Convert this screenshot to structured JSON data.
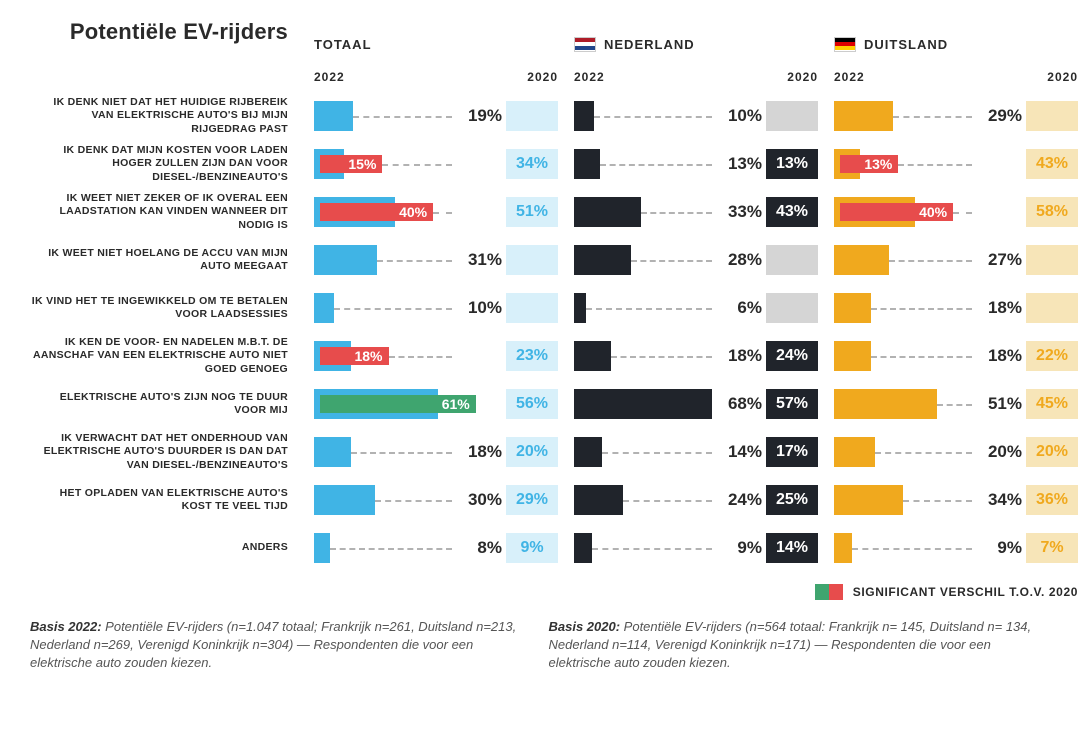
{
  "title": "Potentiële EV-rijders",
  "years": {
    "current": "2022",
    "previous": "2020"
  },
  "colorScheme": {
    "sig_increase": "#3fa56f",
    "sig_decrease": "#e74c4c",
    "dash": "rgba(0,0,0,0.3)",
    "text": "#2a2a2a",
    "white": "#ffffff",
    "background": "#ffffff"
  },
  "layout": {
    "maxBarPct": 70,
    "barHeight": 30,
    "overlayHeight": 18,
    "box2020Width": 52,
    "valueWidth": 48,
    "gapAfterBar": 50,
    "valueFontSize": 17,
    "box2020FontSize": 16,
    "labelFontSize": 10.5,
    "headerFontSize": 13
  },
  "columns": [
    {
      "key": "totaal",
      "label": "TOTAAL",
      "flag": null,
      "barColor": "#40b4e5",
      "box2020Bg": "#d8f0fa",
      "box2020Text": "#40b4e5",
      "emptyBoxBg": "#d8f0fa"
    },
    {
      "key": "nederland",
      "label": "NEDERLAND",
      "flag": [
        "#ae1c28",
        "#ffffff",
        "#21468b"
      ],
      "barColor": "#20242b",
      "box2020Bg": "#20242b",
      "box2020Text": "#ffffff",
      "emptyBoxBg": "#d5d5d5"
    },
    {
      "key": "duitsland",
      "label": "DUITSLAND",
      "flag": [
        "#000000",
        "#dd0000",
        "#ffce00"
      ],
      "barColor": "#f0a91e",
      "box2020Bg": "#f7e5b8",
      "box2020Text": "#f0a91e",
      "emptyBoxBg": "#f7e5b8"
    }
  ],
  "rows": [
    {
      "label": "IK DENK NIET DAT HET HUIDIGE RIJBEREIK VAN ELEKTRISCHE AUTO'S BIJ MIJN RIJGEDRAG PAST",
      "totaal": {
        "v2022": 19,
        "v2020": null,
        "sig": null
      },
      "nederland": {
        "v2022": 10,
        "v2020": null,
        "sig": null
      },
      "duitsland": {
        "v2022": 29,
        "v2020": null,
        "sig": null
      }
    },
    {
      "label": "IK DENK DAT MIJN KOSTEN VOOR LADEN HOGER ZULLEN ZIJN DAN VOOR DIESEL-/BENZINEAUTO'S",
      "totaal": {
        "v2022": 15,
        "v2020": 34,
        "sig": "decrease"
      },
      "nederland": {
        "v2022": 13,
        "v2020": 13,
        "sig": null
      },
      "duitsland": {
        "v2022": 13,
        "v2020": 43,
        "sig": "decrease"
      }
    },
    {
      "label": "IK WEET NIET ZEKER OF IK OVERAL EEN LAADSTATION KAN VINDEN WANNEER DIT NODIG IS",
      "totaal": {
        "v2022": 40,
        "v2020": 51,
        "sig": "decrease"
      },
      "nederland": {
        "v2022": 33,
        "v2020": 43,
        "sig": null
      },
      "duitsland": {
        "v2022": 40,
        "v2020": 58,
        "sig": "decrease"
      }
    },
    {
      "label": "IK WEET NIET HOELANG DE ACCU VAN MIJN AUTO MEEGAAT",
      "totaal": {
        "v2022": 31,
        "v2020": null,
        "sig": null
      },
      "nederland": {
        "v2022": 28,
        "v2020": null,
        "sig": null
      },
      "duitsland": {
        "v2022": 27,
        "v2020": null,
        "sig": null
      }
    },
    {
      "label": "IK VIND HET TE INGEWIKKELD OM TE BETALEN VOOR LAADSESSIES",
      "totaal": {
        "v2022": 10,
        "v2020": null,
        "sig": null
      },
      "nederland": {
        "v2022": 6,
        "v2020": null,
        "sig": null
      },
      "duitsland": {
        "v2022": 18,
        "v2020": null,
        "sig": null
      }
    },
    {
      "label": "IK KEN DE VOOR- EN NADELEN M.B.T. DE AANSCHAF VAN EEN ELEKTRISCHE AUTO NIET GOED GENOEG",
      "totaal": {
        "v2022": 18,
        "v2020": 23,
        "sig": "decrease"
      },
      "nederland": {
        "v2022": 18,
        "v2020": 24,
        "sig": null
      },
      "duitsland": {
        "v2022": 18,
        "v2020": 22,
        "sig": null
      }
    },
    {
      "label": "ELEKTRISCHE AUTO'S ZIJN NOG TE DUUR VOOR MIJ",
      "totaal": {
        "v2022": 61,
        "v2020": 56,
        "sig": "increase"
      },
      "nederland": {
        "v2022": 68,
        "v2020": 57,
        "sig": null
      },
      "duitsland": {
        "v2022": 51,
        "v2020": 45,
        "sig": null
      }
    },
    {
      "label": "IK VERWACHT DAT HET ONDERHOUD VAN ELEKTRISCHE AUTO'S DUURDER IS DAN DAT VAN DIESEL-/BENZINEAUTO'S",
      "totaal": {
        "v2022": 18,
        "v2020": 20,
        "sig": null
      },
      "nederland": {
        "v2022": 14,
        "v2020": 17,
        "sig": null
      },
      "duitsland": {
        "v2022": 20,
        "v2020": 20,
        "sig": null
      }
    },
    {
      "label": "HET OPLADEN VAN ELEKTRISCHE AUTO'S KOST TE VEEL TIJD",
      "totaal": {
        "v2022": 30,
        "v2020": 29,
        "sig": null
      },
      "nederland": {
        "v2022": 24,
        "v2020": 25,
        "sig": null
      },
      "duitsland": {
        "v2022": 34,
        "v2020": 36,
        "sig": null
      }
    },
    {
      "label": "ANDERS",
      "totaal": {
        "v2022": 8,
        "v2020": 9,
        "sig": null
      },
      "nederland": {
        "v2022": 9,
        "v2020": 14,
        "sig": null
      },
      "duitsland": {
        "v2022": 9,
        "v2020": 7,
        "sig": null
      }
    }
  ],
  "legend": "SIGNIFICANT VERSCHIL T.O.V. 2020",
  "footnotes": {
    "left_bold": "Basis 2022:",
    "left": " Potentiële EV-rijders (n=1.047 totaal; Frankrijk n=261, Duitsland n=213, Nederland n=269, Verenigd Koninkrijk n=304) — Respondenten die voor een elektrische auto zouden kiezen.",
    "right_bold": "Basis 2020:",
    "right": " Potentiële EV-rijders (n=564 totaal: Frankrijk n= 145, Duitsland n= 134, Nederland n=114, Verenigd Koninkrijk n=171) — Respondenten die voor een elektrische auto zouden kiezen."
  }
}
